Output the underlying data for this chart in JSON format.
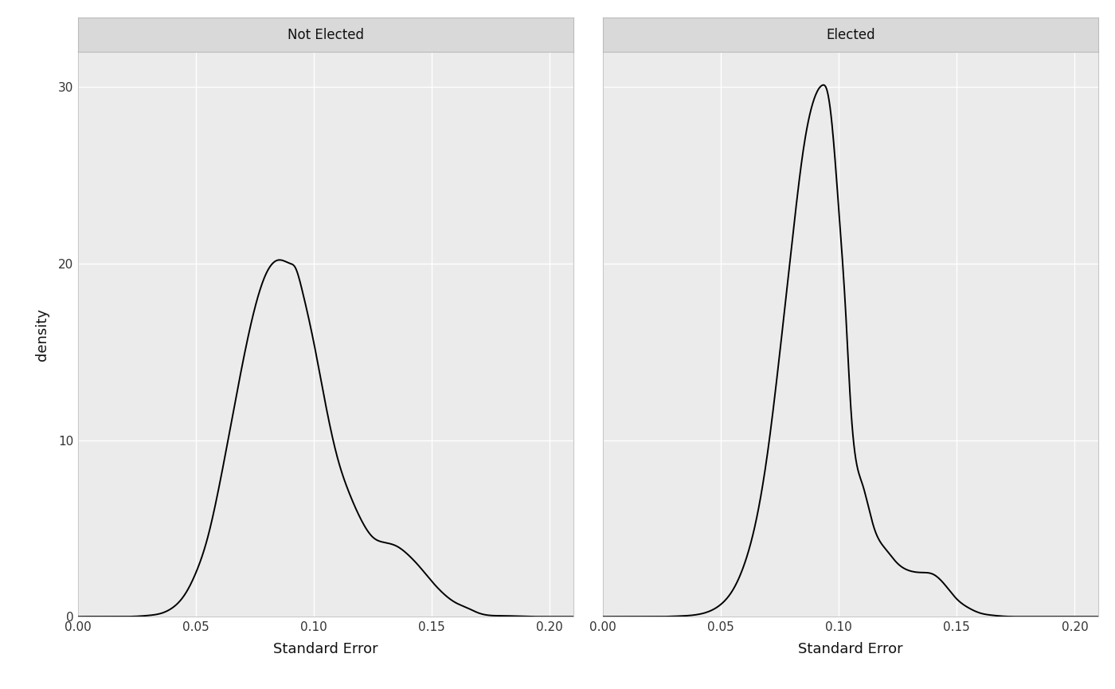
{
  "panel_titles": [
    "Not Elected",
    "Elected"
  ],
  "xlabel": "Standard Error",
  "ylabel": "density",
  "xlim": [
    0.0,
    0.21
  ],
  "ylim": [
    0.0,
    32
  ],
  "xticks": [
    0.0,
    0.05,
    0.1,
    0.15,
    0.2
  ],
  "yticks": [
    0,
    10,
    20,
    30
  ],
  "background_color": "#ffffff",
  "panel_bg_color": "#ebebeb",
  "strip_bg_color": "#d9d9d9",
  "grid_color": "#ffffff",
  "line_color": "#000000",
  "line_width": 1.4,
  "figsize": [
    14.0,
    8.65
  ],
  "dpi": 100,
  "not_elected_x": [
    0.0,
    0.01,
    0.02,
    0.025,
    0.03,
    0.035,
    0.04,
    0.045,
    0.05,
    0.055,
    0.06,
    0.065,
    0.07,
    0.075,
    0.08,
    0.085,
    0.09,
    0.092,
    0.095,
    0.1,
    0.105,
    0.11,
    0.115,
    0.12,
    0.125,
    0.13,
    0.135,
    0.14,
    0.145,
    0.15,
    0.155,
    0.16,
    0.165,
    0.17,
    0.18,
    0.19,
    0.2,
    0.21
  ],
  "not_elected_y": [
    0.0,
    0.0,
    0.0,
    0.02,
    0.07,
    0.18,
    0.5,
    1.2,
    2.5,
    4.5,
    7.5,
    11.0,
    14.5,
    17.5,
    19.5,
    20.2,
    20.0,
    19.8,
    18.5,
    15.5,
    12.0,
    9.0,
    7.0,
    5.5,
    4.5,
    4.2,
    4.0,
    3.5,
    2.8,
    2.0,
    1.3,
    0.8,
    0.5,
    0.2,
    0.05,
    0.01,
    0.0,
    0.0
  ],
  "elected_x": [
    0.0,
    0.01,
    0.02,
    0.025,
    0.03,
    0.035,
    0.04,
    0.045,
    0.05,
    0.055,
    0.06,
    0.065,
    0.07,
    0.075,
    0.08,
    0.085,
    0.09,
    0.093,
    0.095,
    0.097,
    0.1,
    0.103,
    0.105,
    0.11,
    0.115,
    0.12,
    0.125,
    0.13,
    0.135,
    0.14,
    0.145,
    0.15,
    0.155,
    0.16,
    0.165,
    0.17,
    0.18,
    0.19,
    0.2,
    0.21
  ],
  "elected_y": [
    0.0,
    0.0,
    0.0,
    0.0,
    0.02,
    0.05,
    0.12,
    0.3,
    0.7,
    1.5,
    3.0,
    5.5,
    9.5,
    15.0,
    21.0,
    26.5,
    29.5,
    30.1,
    29.8,
    28.0,
    23.0,
    17.0,
    12.0,
    7.5,
    5.0,
    3.8,
    3.0,
    2.6,
    2.5,
    2.4,
    1.8,
    1.0,
    0.5,
    0.2,
    0.08,
    0.02,
    0.0,
    0.0,
    0.0,
    0.0
  ]
}
